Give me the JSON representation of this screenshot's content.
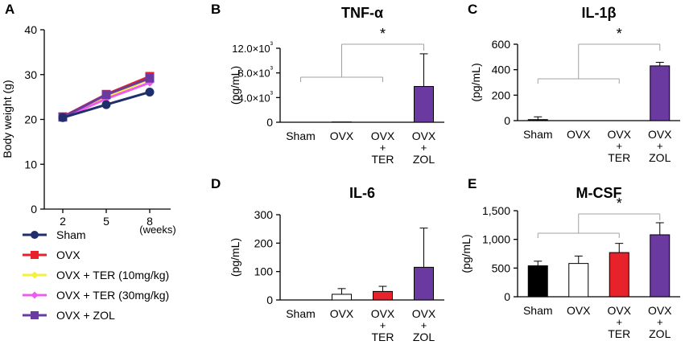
{
  "panels": {
    "A": "A",
    "B": "B",
    "C": "C",
    "D": "D",
    "E": "E"
  },
  "colors": {
    "sham": "#1f2f6b",
    "ovx": "#e8222a",
    "ter10": "#f4f13a",
    "ter30": "#ee5cee",
    "zol": "#6a3aa0",
    "axis": "#000000",
    "bracket": "#a0a0a0"
  },
  "chart_data": [
    {
      "id": "A",
      "type": "line",
      "title": "",
      "xlabel": "(weeks)",
      "ylabel": "Body weight (g)",
      "categories": [
        "2",
        "5",
        "8"
      ],
      "ylim": [
        0,
        40
      ],
      "yticks": [
        "0",
        "10",
        "20",
        "30",
        "40"
      ],
      "series": [
        {
          "name": "Sham",
          "values": [
            20.4,
            23.3,
            26.1
          ]
        },
        {
          "name": "OVX",
          "values": [
            20.6,
            25.6,
            29.6
          ]
        },
        {
          "name": "OVX + TER (10mg/kg)",
          "values": [
            20.5,
            25.0,
            29.0
          ]
        },
        {
          "name": "OVX + TER (30mg/kg)",
          "values": [
            20.3,
            24.6,
            28.2
          ]
        },
        {
          "name": "OVX + ZOL",
          "values": [
            20.5,
            25.5,
            29.2
          ]
        }
      ]
    },
    {
      "id": "B",
      "type": "bar",
      "title": "TNF-α",
      "ylabel": "(pg/mL)",
      "ylim": [
        0,
        12000
      ],
      "yticks": [
        "0",
        "4.0×10³",
        "8.0×10³",
        "12.0×10³"
      ],
      "categories": [
        "Sham",
        "OVX",
        "OVX + TER",
        "OVX + ZOL"
      ],
      "values": [
        0,
        40,
        0,
        5800
      ],
      "errors": [
        0,
        0,
        0,
        5300
      ],
      "significance": "*"
    },
    {
      "id": "C",
      "type": "bar",
      "title": "IL-1β",
      "ylabel": "(pg/mL)",
      "ylim": [
        0,
        600
      ],
      "yticks": [
        "0",
        "200",
        "400",
        "600"
      ],
      "categories": [
        "Sham",
        "OVX",
        "OVX + TER",
        "OVX + ZOL"
      ],
      "values": [
        8,
        0,
        0,
        430
      ],
      "errors": [
        22,
        0,
        0,
        28
      ],
      "significance": "*"
    },
    {
      "id": "D",
      "type": "bar",
      "title": "IL-6",
      "ylabel": "(pg/mL)",
      "ylim": [
        0,
        300
      ],
      "yticks": [
        "0",
        "100",
        "200",
        "300"
      ],
      "categories": [
        "Sham",
        "OVX",
        "OVX + TER",
        "OVX + ZOL"
      ],
      "values": [
        0,
        20,
        30,
        115
      ],
      "errors": [
        0,
        20,
        18,
        138
      ]
    },
    {
      "id": "E",
      "type": "bar",
      "title": "M-CSF",
      "ylabel": "(pg/mL)",
      "ylim": [
        0,
        1500
      ],
      "yticks": [
        "0",
        "500",
        "1,000",
        "1,500"
      ],
      "categories": [
        "Sham",
        "OVX",
        "OVX + TER",
        "OVX + ZOL"
      ],
      "values": [
        540,
        580,
        770,
        1080
      ],
      "errors": [
        80,
        130,
        160,
        210
      ],
      "significance": "*"
    }
  ]
}
